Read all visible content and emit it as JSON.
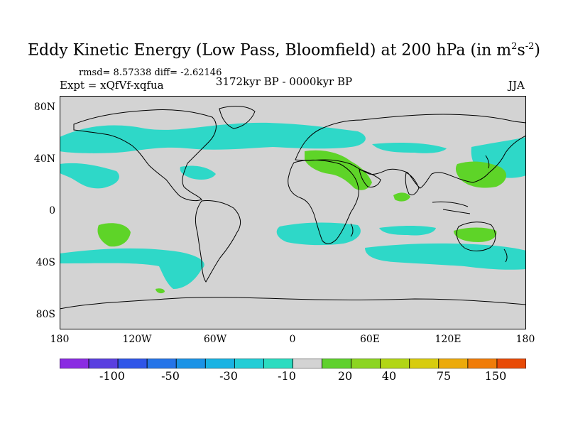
{
  "title": "Eddy Kinetic Energy (Low Pass, Bloomfield) at 200 hPa",
  "title_units_prefix": "(in m",
  "title_units_sup1": "2",
  "title_units_mid": "s",
  "title_units_sup2": "-2",
  "title_units_suffix": ")",
  "stats": "rmsd= 8.57338 diff= -2.62146",
  "experiment": "Expt = xQfVf-xqfua",
  "period": "3172kyr BP - 0000kyr BP",
  "season": "JJA",
  "y_ticks": [
    "80N",
    "40N",
    "0",
    "40S",
    "80S"
  ],
  "x_ticks": [
    "180",
    "120W",
    "60W",
    "0",
    "60E",
    "120E",
    "180"
  ],
  "colorbar": {
    "colors": [
      "#8a2be2",
      "#5a3fe0",
      "#2f55e8",
      "#2574e8",
      "#1b93e6",
      "#19b3e3",
      "#22cdd6",
      "#2bdcc0",
      "#d3d3d3",
      "#5fd12d",
      "#8cd521",
      "#b2d616",
      "#d8cc0e",
      "#ecaa0b",
      "#f07c08",
      "#e84a06"
    ],
    "labels": [
      "-100",
      "-50",
      "-30",
      "-10",
      "20",
      "40",
      "75",
      "150"
    ]
  },
  "field_colors": {
    "ocean": "#d3d3d3",
    "negative": "#2ed8c8",
    "positive": "#5ed428",
    "land_outline": "#000000"
  }
}
